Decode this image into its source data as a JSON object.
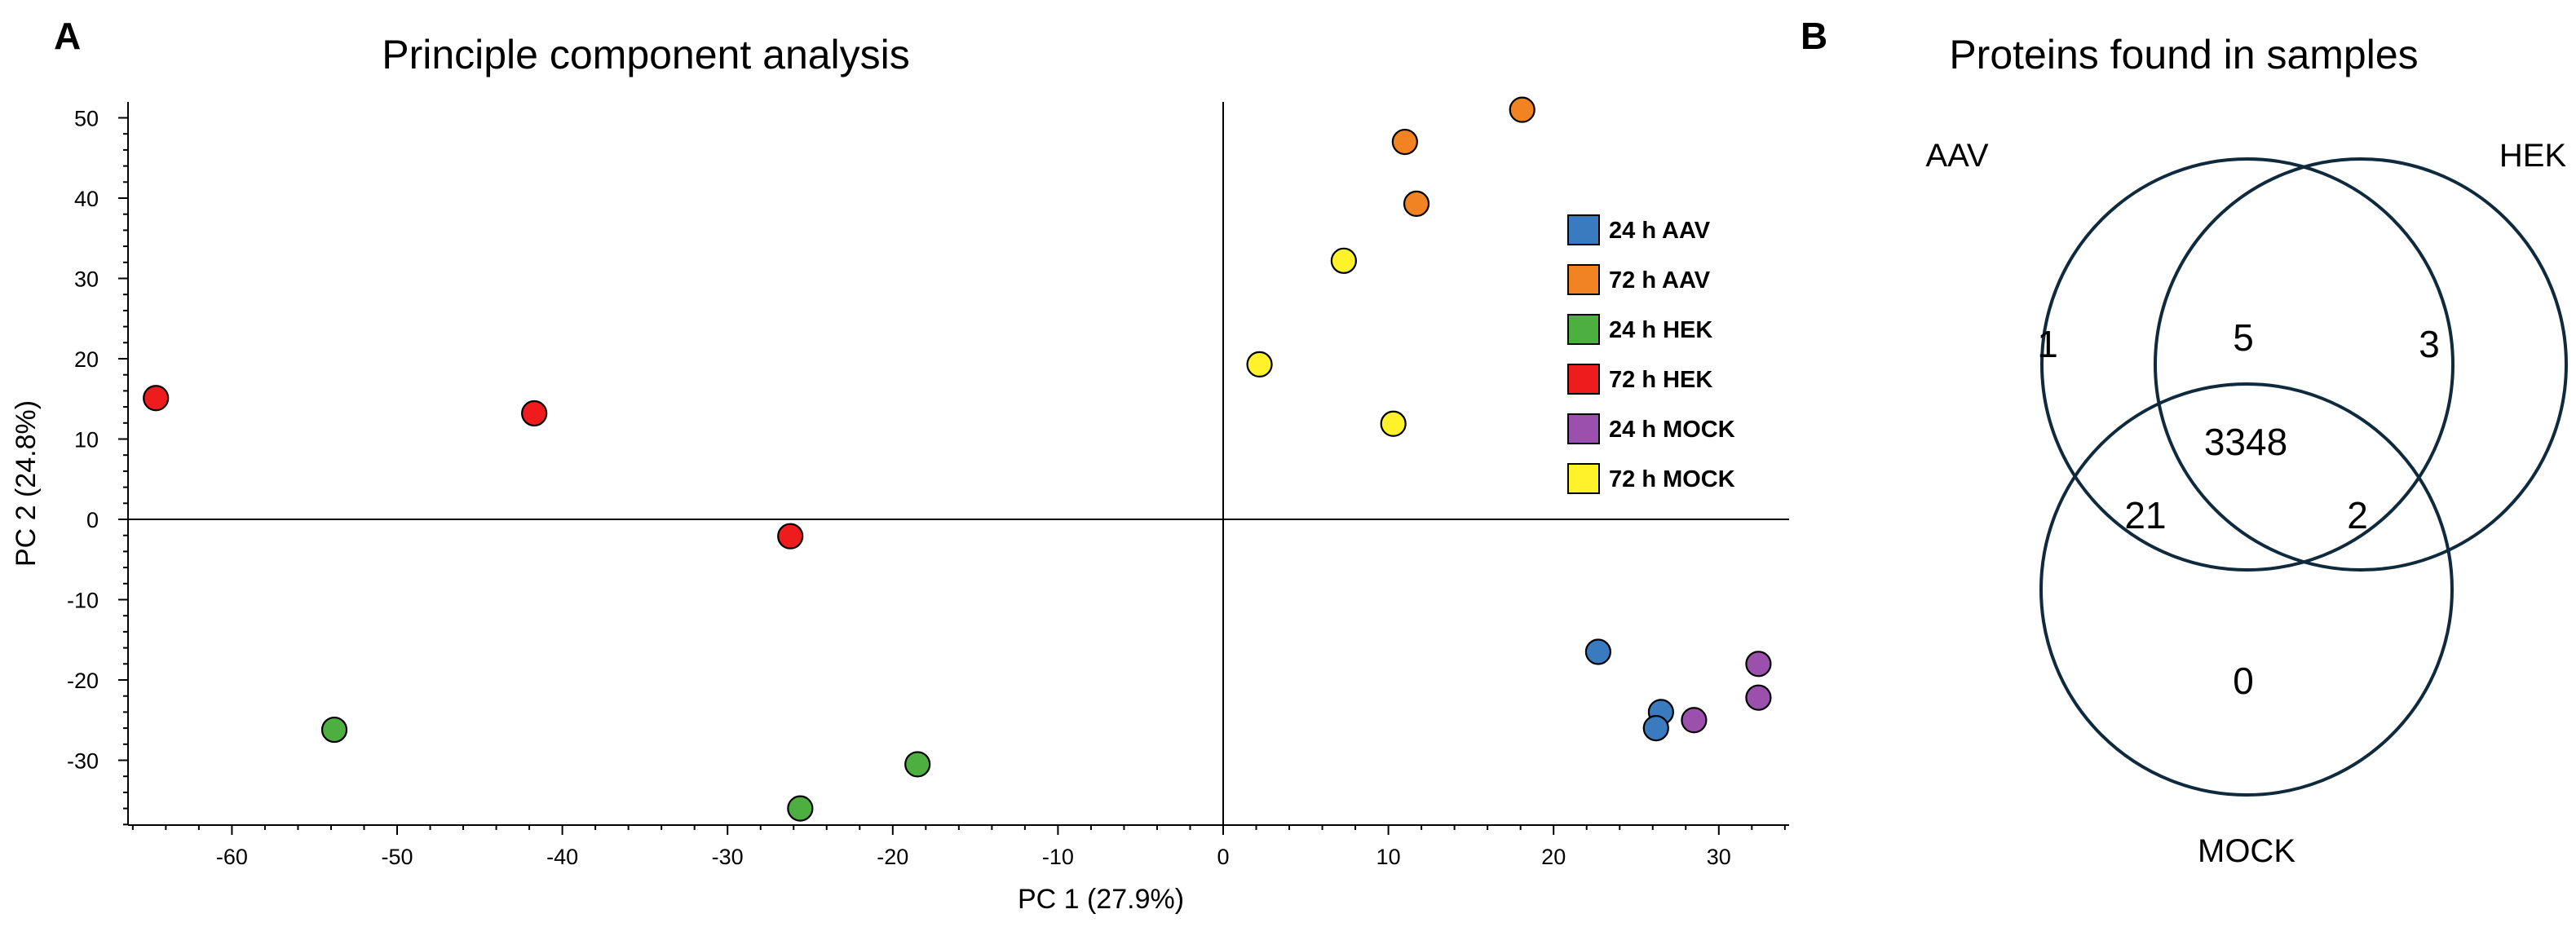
{
  "panels": {
    "a": {
      "letter": "A"
    },
    "b": {
      "letter": "B"
    }
  },
  "colors": {
    "24 h AAV": "#3a7bbf",
    "72 h AAV": "#f28322",
    "24 h HEK": "#4caf3f",
    "72 h HEK": "#ee1c1c",
    "24 h MOCK": "#9b50ad",
    "72 h MOCK": "#fff22a"
  },
  "chart_data": [
    {
      "type": "scatter",
      "title": "Principle component analysis",
      "xlabel": "PC 1 (27.9%)",
      "ylabel": "PC 2 (24.8%)",
      "xlim": [
        -66,
        34
      ],
      "ylim": [
        -38,
        52
      ],
      "xticks": [
        -60,
        -50,
        -40,
        -30,
        -20,
        -10,
        0,
        10,
        20,
        30
      ],
      "yticks": [
        -30,
        -20,
        -10,
        0,
        10,
        20,
        30,
        40,
        50
      ],
      "ytick_labels": [
        "-30",
        "-20",
        "-10",
        "0",
        "10",
        "20",
        "30",
        "40",
        "50"
      ],
      "reference_lines": {
        "x": 0,
        "y": 0
      },
      "legend": [
        "24 h AAV",
        "72 h AAV",
        "24 h HEK",
        "72 h HEK",
        "24 h MOCK",
        "72 h MOCK"
      ],
      "series": [
        {
          "name": "24 h AAV",
          "points": [
            [
              22.7,
              -16.5
            ],
            [
              26.5,
              -24
            ],
            [
              26.2,
              -26
            ]
          ]
        },
        {
          "name": "72 h AAV",
          "points": [
            [
              18.1,
              51
            ],
            [
              11,
              47
            ],
            [
              11.7,
              39.3
            ]
          ]
        },
        {
          "name": "24 h HEK",
          "points": [
            [
              -53.8,
              -26.2
            ],
            [
              -18.5,
              -30.5
            ],
            [
              -25.6,
              -36
            ]
          ]
        },
        {
          "name": "72 h HEK",
          "points": [
            [
              -64.6,
              15.1
            ],
            [
              -41.7,
              13.2
            ],
            [
              -26.2,
              -2.1
            ]
          ]
        },
        {
          "name": "24 h MOCK",
          "points": [
            [
              32.4,
              -18
            ],
            [
              28.5,
              -25
            ],
            [
              32.4,
              -22.2
            ]
          ]
        },
        {
          "name": "72 h MOCK",
          "points": [
            [
              7.3,
              32.2
            ],
            [
              2.2,
              19.3
            ],
            [
              10.3,
              11.9
            ]
          ]
        }
      ]
    },
    {
      "type": "venn",
      "title": "Proteins found in samples",
      "sets": [
        "AAV",
        "HEK",
        "MOCK"
      ],
      "regions": {
        "AAV_only": "1",
        "HEK_only": "3",
        "MOCK_only": "0",
        "AAV_HEK": "5",
        "AAV_MOCK": "21",
        "HEK_MOCK": "2",
        "all_three": "3348"
      }
    }
  ]
}
